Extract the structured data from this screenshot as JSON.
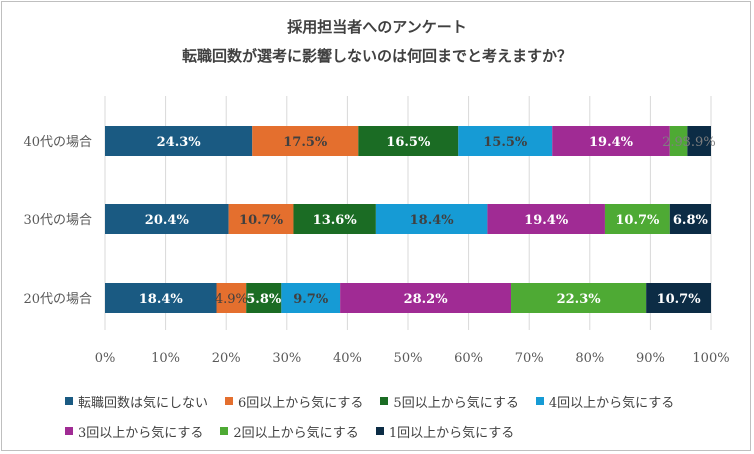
{
  "chart_data": {
    "type": "bar",
    "orientation": "horizontal",
    "stacked": true,
    "title": "採用担当者へのアンケート",
    "subtitle": "転職回数が選考に影響しないのは何回までと考えますか？",
    "categories": [
      "40代の場合",
      "30代の場合",
      "20代の場合"
    ],
    "series": [
      {
        "name": "転職回数は気にしない",
        "color": "#1a5a82",
        "values": [
          24.3,
          20.4,
          18.4
        ],
        "labels": [
          "24.3%",
          "20.4%",
          "18.4%"
        ]
      },
      {
        "name": "6回以上から気にする",
        "color": "#e46f2e",
        "values": [
          17.5,
          10.7,
          4.9
        ],
        "labels": [
          "17.5%",
          "10.7%",
          "4.9%"
        ]
      },
      {
        "name": "5回以上から気にする",
        "color": "#1b6c24",
        "values": [
          16.5,
          13.6,
          5.8
        ],
        "labels": [
          "16.5%",
          "13.6%",
          "5.8%"
        ]
      },
      {
        "name": "4回以上から気にする",
        "color": "#169bd5",
        "values": [
          15.5,
          18.4,
          9.7
        ],
        "labels": [
          "15.5%",
          "18.4%",
          "9.7%"
        ]
      },
      {
        "name": "3回以上から気にする",
        "color": "#a02b94",
        "values": [
          19.4,
          19.4,
          28.2
        ],
        "labels": [
          "19.4%",
          "19.4%",
          "28.2%"
        ]
      },
      {
        "name": "2回以上から気にする",
        "color": "#4eaa34",
        "values": [
          2.9,
          10.7,
          22.3
        ],
        "labels": [
          "2.9%",
          "10.7%",
          "22.3%"
        ]
      },
      {
        "name": "1回以上から気にする",
        "color": "#0c2c45",
        "values": [
          3.9,
          6.8,
          10.7
        ],
        "labels": [
          "3.9%",
          "6.8%",
          "10.7%"
        ]
      }
    ],
    "label_colors": {
      "light": "#ffffff",
      "dark": "#404040",
      "overflow": "#7f7f7f"
    },
    "xlim": [
      0,
      100
    ],
    "xticks": [
      "0%",
      "10%",
      "20%",
      "30%",
      "40%",
      "50%",
      "60%",
      "70%",
      "80%",
      "90%",
      "100%"
    ],
    "grid": true,
    "legend_position": "bottom"
  }
}
